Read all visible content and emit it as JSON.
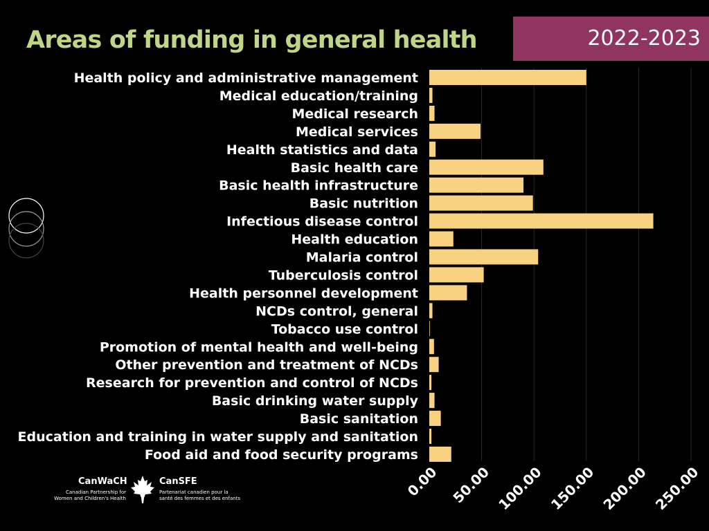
{
  "title": "Areas of funding in general health",
  "year": "2022-2023",
  "logo": {
    "left_name": "CanWaCH",
    "left_sub_1": "Canadian Partnership for",
    "left_sub_2": "Women and Children's Health",
    "right_name": "CanSFE",
    "right_sub_1": "Partenariat canadien pour la",
    "right_sub_2": "santé des femmes et des enfants"
  },
  "colors": {
    "bar": "#f9d281",
    "title": "#bfd686",
    "year_box": "#8f3560",
    "background": "#000000"
  },
  "chart_data": {
    "type": "bar",
    "orientation": "horizontal",
    "categories": [
      "Health policy and administrative management",
      "Medical education/training",
      "Medical research",
      "Medical services",
      "Health statistics and data",
      "Basic health care",
      "Basic health infrastructure",
      "Basic nutrition",
      "Infectious disease control",
      "Health education",
      "Malaria control",
      "Tuberculosis control",
      "Health personnel development",
      "NCDs control, general",
      "Tobacco use control",
      "Promotion of mental health and well-being",
      "Other prevention and treatment of NCDs",
      "Research for prevention and control of NCDs",
      "Basic drinking water supply",
      "Basic sanitation",
      "Education and training in water supply and sanitation",
      "Food aid and food security programs"
    ],
    "values": [
      150,
      3,
      5,
      49,
      6,
      109,
      90,
      99,
      214,
      23,
      104,
      52,
      36,
      3,
      0.3,
      4.5,
      9,
      2,
      5,
      11,
      2,
      21
    ],
    "xlim": [
      0,
      250
    ],
    "ticks": [
      0,
      50,
      100,
      150,
      200,
      250
    ],
    "tick_labels": [
      "0.00",
      "50.00",
      "100.00",
      "150.00",
      "200.00",
      "250.00"
    ],
    "grid": "vertical"
  }
}
